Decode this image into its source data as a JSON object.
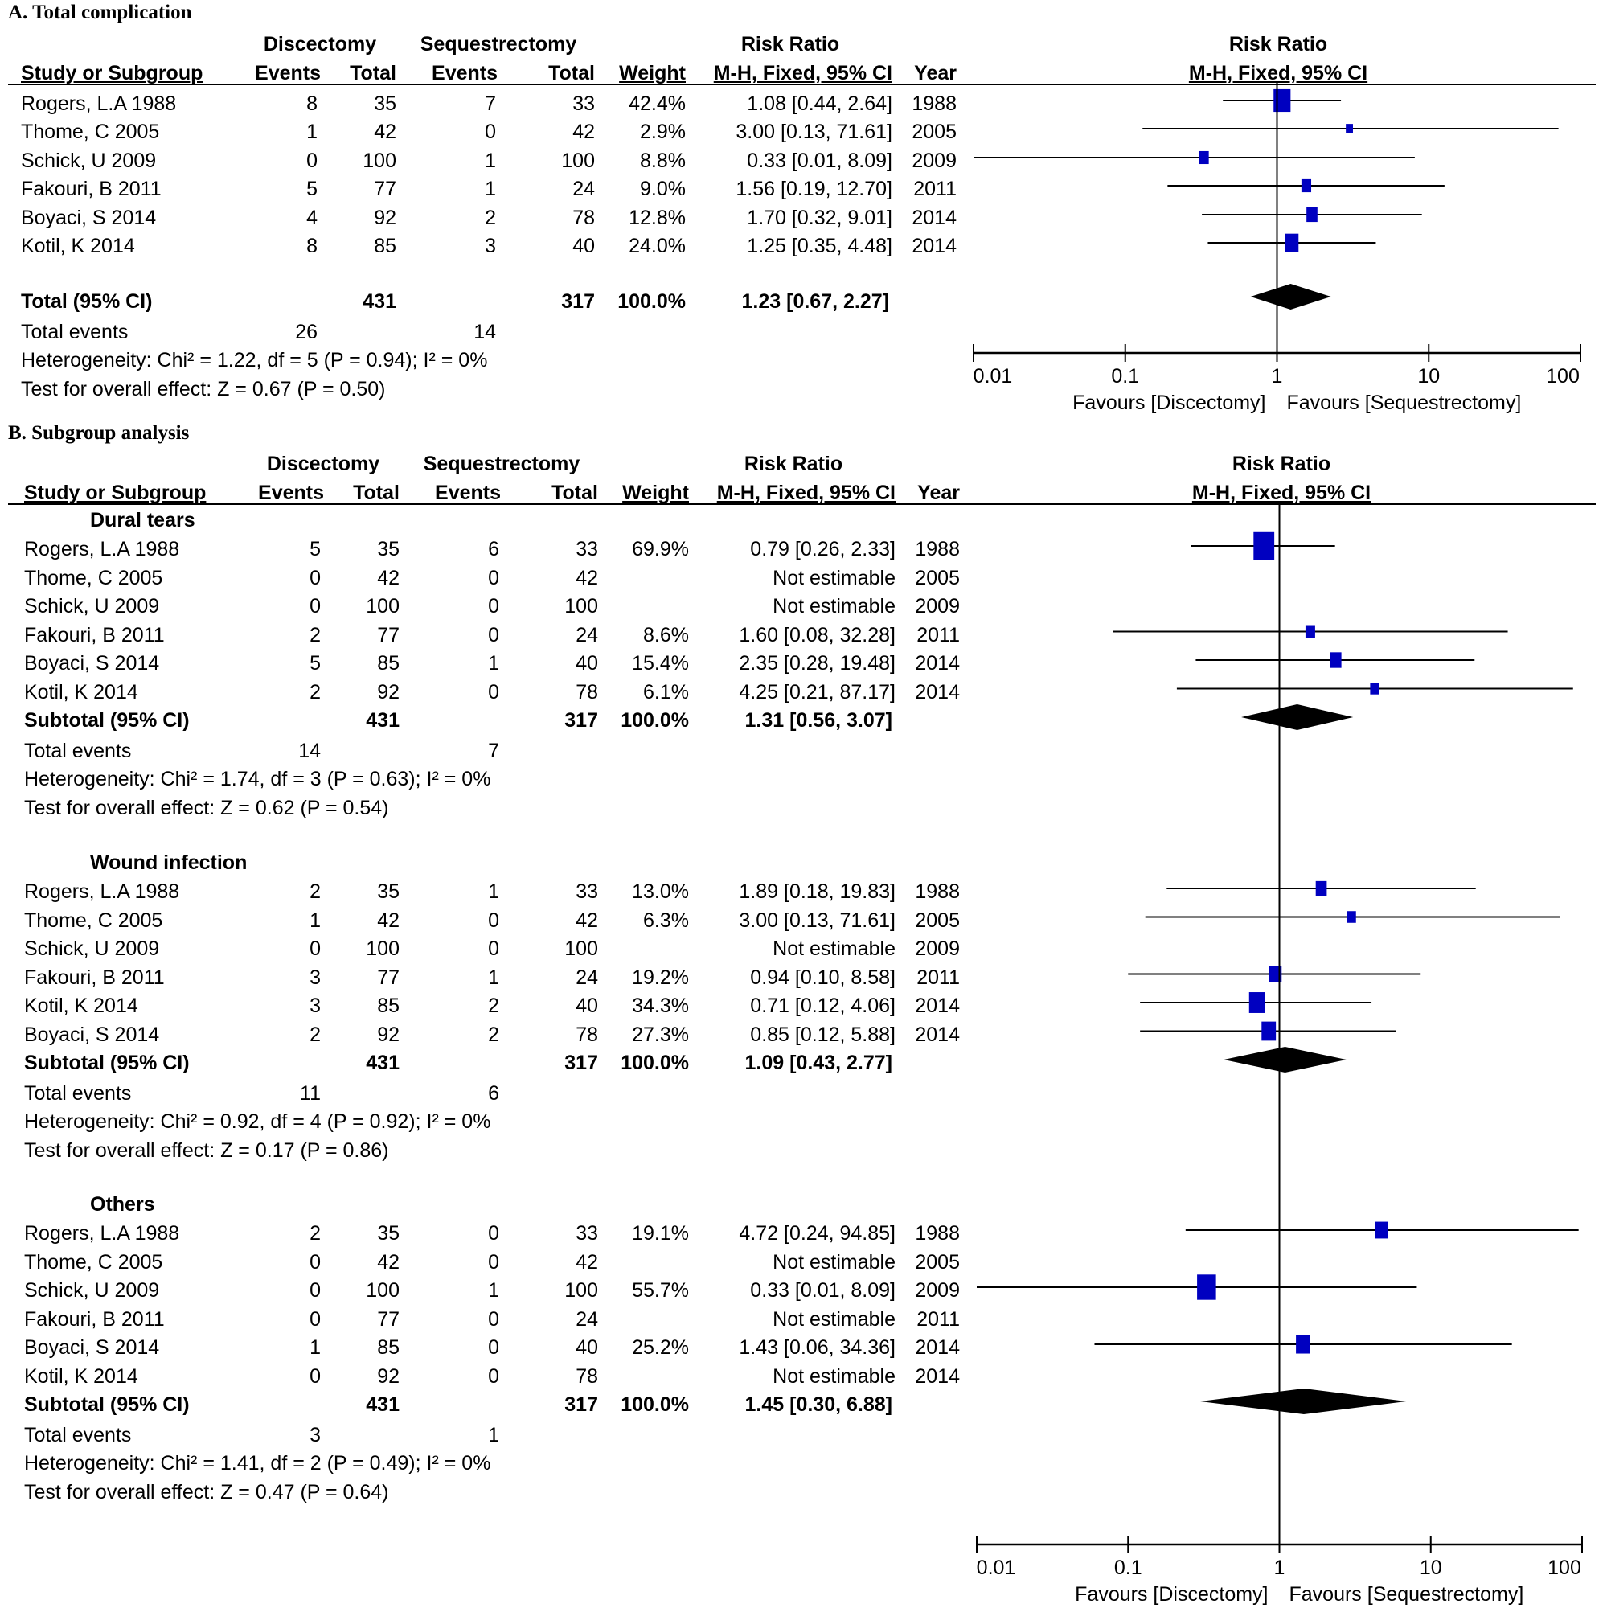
{
  "chart_data": [
    {
      "type": "forest",
      "panel": "A",
      "title": "A. Total complication",
      "group_headers": {
        "experimental": "Discectomy",
        "control": "Sequestrectomy",
        "effect": "Risk Ratio",
        "plot": "Risk Ratio"
      },
      "columns": [
        "Study or Subgroup",
        "Events",
        "Total",
        "Events",
        "Total",
        "Weight",
        "M-H, Fixed, 95% CI",
        "Year"
      ],
      "plot_subheader": "M-H, Fixed, 95% CI",
      "studies": [
        {
          "name": "Rogers, L.A 1988",
          "e_events": "8",
          "e_total": "35",
          "c_events": "7",
          "c_total": "33",
          "weight": "42.4%",
          "ci_text": "1.08 [0.44, 2.64]",
          "year": "1988",
          "rr": 1.08,
          "lo": 0.44,
          "hi": 2.64,
          "w": 42.4
        },
        {
          "name": "Thome, C 2005",
          "e_events": "1",
          "e_total": "42",
          "c_events": "0",
          "c_total": "42",
          "weight": "2.9%",
          "ci_text": "3.00 [0.13, 71.61]",
          "year": "2005",
          "rr": 3.0,
          "lo": 0.13,
          "hi": 71.61,
          "w": 2.9
        },
        {
          "name": "Schick, U 2009",
          "e_events": "0",
          "e_total": "100",
          "c_events": "1",
          "c_total": "100",
          "weight": "8.8%",
          "ci_text": "0.33 [0.01, 8.09]",
          "year": "2009",
          "rr": 0.33,
          "lo": 0.01,
          "hi": 8.09,
          "w": 8.8
        },
        {
          "name": "Fakouri, B 2011",
          "e_events": "5",
          "e_total": "77",
          "c_events": "1",
          "c_total": "24",
          "weight": "9.0%",
          "ci_text": "1.56 [0.19, 12.70]",
          "year": "2011",
          "rr": 1.56,
          "lo": 0.19,
          "hi": 12.7,
          "w": 9.0
        },
        {
          "name": "Boyaci, S 2014",
          "e_events": "4",
          "e_total": "92",
          "c_events": "2",
          "c_total": "78",
          "weight": "12.8%",
          "ci_text": "1.70 [0.32, 9.01]",
          "year": "2014",
          "rr": 1.7,
          "lo": 0.32,
          "hi": 9.01,
          "w": 12.8
        },
        {
          "name": "Kotil, K 2014",
          "e_events": "8",
          "e_total": "85",
          "c_events": "3",
          "c_total": "40",
          "weight": "24.0%",
          "ci_text": "1.25 [0.35, 4.48]",
          "year": "2014",
          "rr": 1.25,
          "lo": 0.35,
          "hi": 4.48,
          "w": 24.0
        }
      ],
      "total": {
        "label": "Total (95% CI)",
        "e_total": "431",
        "c_total": "317",
        "weight": "100.0%",
        "ci_text": "1.23 [0.67, 2.27]",
        "rr": 1.23,
        "lo": 0.67,
        "hi": 2.27
      },
      "total_events": {
        "label": "Total events",
        "e": "26",
        "c": "14"
      },
      "heterogeneity": "Heterogeneity: Chi² = 1.22, df = 5 (P = 0.94); I² = 0%",
      "overall_effect": "Test for overall effect: Z = 0.67 (P = 0.50)",
      "axis": {
        "scale": "log",
        "xlim": [
          0.01,
          100
        ],
        "ticks": [
          "0.01",
          "0.1",
          "1",
          "10",
          "100"
        ],
        "tick_values": [
          0.01,
          0.1,
          1,
          10,
          100
        ]
      },
      "favours_left": "Favours [Discectomy]",
      "favours_right": "Favours [Sequestrectomy]"
    },
    {
      "type": "forest",
      "panel": "B",
      "title": "B. Subgroup analysis",
      "group_headers": {
        "experimental": "Discectomy",
        "control": "Sequestrectomy",
        "effect": "Risk Ratio",
        "plot": "Risk Ratio"
      },
      "columns": [
        "Study or Subgroup",
        "Events",
        "Total",
        "Events",
        "Total",
        "Weight",
        "M-H, Fixed, 95% CI",
        "Year"
      ],
      "plot_subheader": "M-H, Fixed, 95% CI",
      "subgroups": [
        {
          "name": "Dural tears",
          "studies": [
            {
              "name": "Rogers, L.A 1988",
              "e_events": "5",
              "e_total": "35",
              "c_events": "6",
              "c_total": "33",
              "weight": "69.9%",
              "ci_text": "0.79 [0.26, 2.33]",
              "year": "1988",
              "rr": 0.79,
              "lo": 0.26,
              "hi": 2.33,
              "w": 69.9
            },
            {
              "name": "Thome, C 2005",
              "e_events": "0",
              "e_total": "42",
              "c_events": "0",
              "c_total": "42",
              "weight": "",
              "ci_text": "Not estimable",
              "year": "2005",
              "rr": null,
              "lo": null,
              "hi": null,
              "w": null
            },
            {
              "name": "Schick, U 2009",
              "e_events": "0",
              "e_total": "100",
              "c_events": "0",
              "c_total": "100",
              "weight": "",
              "ci_text": "Not estimable",
              "year": "2009",
              "rr": null,
              "lo": null,
              "hi": null,
              "w": null
            },
            {
              "name": "Fakouri, B 2011",
              "e_events": "2",
              "e_total": "77",
              "c_events": "0",
              "c_total": "24",
              "weight": "8.6%",
              "ci_text": "1.60 [0.08, 32.28]",
              "year": "2011",
              "rr": 1.6,
              "lo": 0.08,
              "hi": 32.28,
              "w": 8.6
            },
            {
              "name": "Boyaci, S 2014",
              "e_events": "5",
              "e_total": "85",
              "c_events": "1",
              "c_total": "40",
              "weight": "15.4%",
              "ci_text": "2.35 [0.28, 19.48]",
              "year": "2014",
              "rr": 2.35,
              "lo": 0.28,
              "hi": 19.48,
              "w": 15.4
            },
            {
              "name": "Kotil, K 2014",
              "e_events": "2",
              "e_total": "92",
              "c_events": "0",
              "c_total": "78",
              "weight": "6.1%",
              "ci_text": "4.25 [0.21, 87.17]",
              "year": "2014",
              "rr": 4.25,
              "lo": 0.21,
              "hi": 87.17,
              "w": 6.1
            }
          ],
          "subtotal": {
            "label": "Subtotal (95% CI)",
            "e_total": "431",
            "c_total": "317",
            "weight": "100.0%",
            "ci_text": "1.31 [0.56, 3.07]",
            "rr": 1.31,
            "lo": 0.56,
            "hi": 3.07
          },
          "total_events": {
            "label": "Total events",
            "e": "14",
            "c": "7"
          },
          "heterogeneity": "Heterogeneity: Chi² = 1.74, df = 3 (P = 0.63); I² = 0%",
          "overall_effect": "Test for overall effect: Z = 0.62 (P = 0.54)"
        },
        {
          "name": "Wound infection",
          "studies": [
            {
              "name": "Rogers, L.A 1988",
              "e_events": "2",
              "e_total": "35",
              "c_events": "1",
              "c_total": "33",
              "weight": "13.0%",
              "ci_text": "1.89 [0.18, 19.83]",
              "year": "1988",
              "rr": 1.89,
              "lo": 0.18,
              "hi": 19.83,
              "w": 13.0
            },
            {
              "name": "Thome, C 2005",
              "e_events": "1",
              "e_total": "42",
              "c_events": "0",
              "c_total": "42",
              "weight": "6.3%",
              "ci_text": "3.00 [0.13, 71.61]",
              "year": "2005",
              "rr": 3.0,
              "lo": 0.13,
              "hi": 71.61,
              "w": 6.3
            },
            {
              "name": "Schick, U 2009",
              "e_events": "0",
              "e_total": "100",
              "c_events": "0",
              "c_total": "100",
              "weight": "",
              "ci_text": "Not estimable",
              "year": "2009",
              "rr": null,
              "lo": null,
              "hi": null,
              "w": null
            },
            {
              "name": "Fakouri, B 2011",
              "e_events": "3",
              "e_total": "77",
              "c_events": "1",
              "c_total": "24",
              "weight": "19.2%",
              "ci_text": "0.94 [0.10, 8.58]",
              "year": "2011",
              "rr": 0.94,
              "lo": 0.1,
              "hi": 8.58,
              "w": 19.2
            },
            {
              "name": "Kotil, K 2014",
              "e_events": "3",
              "e_total": "85",
              "c_events": "2",
              "c_total": "40",
              "weight": "34.3%",
              "ci_text": "0.71 [0.12, 4.06]",
              "year": "2014",
              "rr": 0.71,
              "lo": 0.12,
              "hi": 4.06,
              "w": 34.3
            },
            {
              "name": "Boyaci, S 2014",
              "e_events": "2",
              "e_total": "92",
              "c_events": "2",
              "c_total": "78",
              "weight": "27.3%",
              "ci_text": "0.85 [0.12, 5.88]",
              "year": "2014",
              "rr": 0.85,
              "lo": 0.12,
              "hi": 5.88,
              "w": 27.3
            }
          ],
          "subtotal": {
            "label": "Subtotal (95% CI)",
            "e_total": "431",
            "c_total": "317",
            "weight": "100.0%",
            "ci_text": "1.09 [0.43, 2.77]",
            "rr": 1.09,
            "lo": 0.43,
            "hi": 2.77
          },
          "total_events": {
            "label": "Total events",
            "e": "11",
            "c": "6"
          },
          "heterogeneity": "Heterogeneity: Chi² = 0.92, df = 4 (P = 0.92); I² = 0%",
          "overall_effect": "Test for overall effect: Z = 0.17 (P = 0.86)"
        },
        {
          "name": "Others",
          "studies": [
            {
              "name": "Rogers, L.A 1988",
              "e_events": "2",
              "e_total": "35",
              "c_events": "0",
              "c_total": "33",
              "weight": "19.1%",
              "ci_text": "4.72 [0.24, 94.85]",
              "year": "1988",
              "rr": 4.72,
              "lo": 0.24,
              "hi": 94.85,
              "w": 19.1
            },
            {
              "name": "Thome, C 2005",
              "e_events": "0",
              "e_total": "42",
              "c_events": "0",
              "c_total": "42",
              "weight": "",
              "ci_text": "Not estimable",
              "year": "2005",
              "rr": null,
              "lo": null,
              "hi": null,
              "w": null
            },
            {
              "name": "Schick, U 2009",
              "e_events": "0",
              "e_total": "100",
              "c_events": "1",
              "c_total": "100",
              "weight": "55.7%",
              "ci_text": "0.33 [0.01, 8.09]",
              "year": "2009",
              "rr": 0.33,
              "lo": 0.01,
              "hi": 8.09,
              "w": 55.7
            },
            {
              "name": "Fakouri, B 2011",
              "e_events": "0",
              "e_total": "77",
              "c_events": "0",
              "c_total": "24",
              "weight": "",
              "ci_text": "Not estimable",
              "year": "2011",
              "rr": null,
              "lo": null,
              "hi": null,
              "w": null
            },
            {
              "name": "Boyaci, S 2014",
              "e_events": "1",
              "e_total": "85",
              "c_events": "0",
              "c_total": "40",
              "weight": "25.2%",
              "ci_text": "1.43 [0.06, 34.36]",
              "year": "2014",
              "rr": 1.43,
              "lo": 0.06,
              "hi": 34.36,
              "w": 25.2
            },
            {
              "name": "Kotil, K 2014",
              "e_events": "0",
              "e_total": "92",
              "c_events": "0",
              "c_total": "78",
              "weight": "",
              "ci_text": "Not estimable",
              "year": "2014",
              "rr": null,
              "lo": null,
              "hi": null,
              "w": null
            }
          ],
          "subtotal": {
            "label": "Subtotal (95% CI)",
            "e_total": "431",
            "c_total": "317",
            "weight": "100.0%",
            "ci_text": "1.45 [0.30, 6.88]",
            "rr": 1.45,
            "lo": 0.3,
            "hi": 6.88
          },
          "total_events": {
            "label": "Total events",
            "e": "3",
            "c": "1"
          },
          "heterogeneity": "Heterogeneity: Chi² = 1.41, df = 2 (P = 0.49); I² = 0%",
          "overall_effect": "Test for overall effect: Z = 0.47 (P = 0.64)"
        }
      ],
      "axis": {
        "scale": "log",
        "xlim": [
          0.01,
          100
        ],
        "ticks": [
          "0.01",
          "0.1",
          "1",
          "10",
          "100"
        ],
        "tick_values": [
          0.01,
          0.1,
          1,
          10,
          100
        ]
      },
      "favours_left": "Favours [Discectomy]",
      "favours_right": "Favours [Sequestrectomy]"
    }
  ],
  "colors": {
    "study_marker": "#0000c0",
    "summary_diamond": "#000000",
    "lines": "#000000"
  }
}
